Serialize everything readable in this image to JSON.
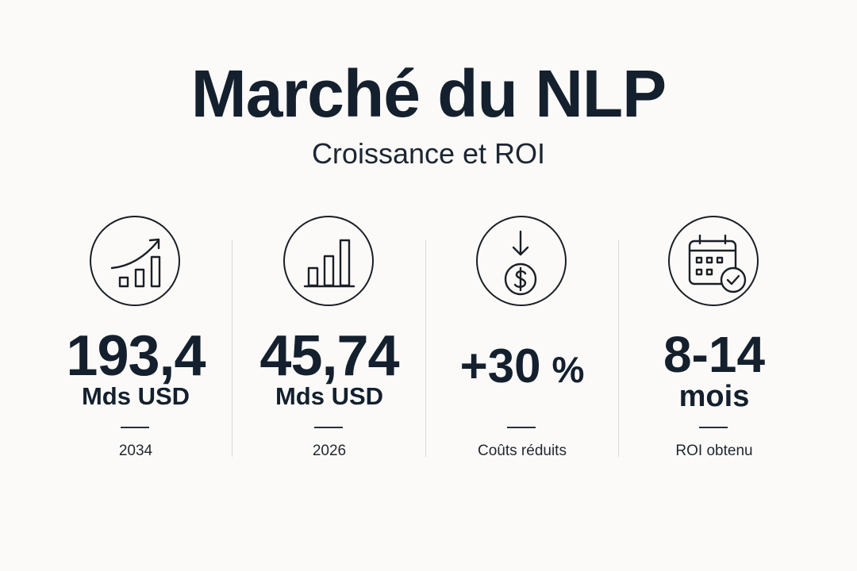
{
  "header": {
    "title": "Marché du NLP",
    "subtitle": "Croissance et ROI"
  },
  "stats": [
    {
      "icon": "growth-chart-icon",
      "value": "193,4",
      "unit": "Mds USD",
      "label": "2034"
    },
    {
      "icon": "bar-chart-icon",
      "value": "45,74",
      "unit": "Mds USD",
      "label": "2026"
    },
    {
      "icon": "cost-reduction-icon",
      "value": "+30",
      "unit": "%",
      "label": "Coûts réduits"
    },
    {
      "icon": "calendar-check-icon",
      "value": "8-14",
      "unit": "mois",
      "label": "ROI obtenu"
    }
  ],
  "colors": {
    "text": "#14202e",
    "background": "#fbfaf8",
    "divider": "#d9d9d9"
  }
}
